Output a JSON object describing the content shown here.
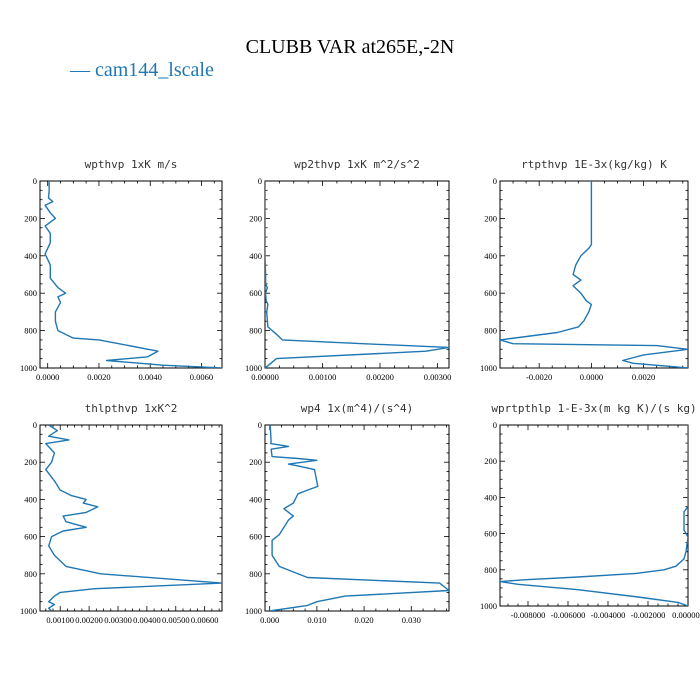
{
  "title": "CLUBB VAR at265E,-2N",
  "legend": {
    "label": "cam144_lscale",
    "color": "#1f77b4"
  },
  "chart_data": [
    {
      "type": "line",
      "title": "wpthvp   1xK m/s",
      "xlim": [
        -0.0003,
        0.0068
      ],
      "ylim": [
        1000,
        0
      ],
      "xticks": [
        0.0,
        0.002,
        0.004,
        0.006
      ],
      "xticklabels": [
        "0.0000",
        "0.0020",
        "0.0040",
        "0.0060"
      ],
      "yticks": [
        0,
        200,
        400,
        600,
        800,
        1000
      ],
      "series": [
        {
          "x": [
            5e-05,
            6e-05,
            3e-05,
            0.0002,
            -0.0001,
            0.0001,
            0.0003,
            -0.0001,
            0.0001,
            0.0001,
            -0.0001,
            0.0001,
            0.0001,
            0.0004,
            0.0007,
            0.0004,
            0.0005,
            0.0003,
            0.0003,
            0.0004,
            0.001,
            0.002,
            0.0043,
            0.0039,
            0.0023,
            0.0045,
            0.0068
          ],
          "y": [
            0,
            50,
            90,
            110,
            130,
            170,
            200,
            240,
            280,
            330,
            390,
            450,
            520,
            570,
            600,
            620,
            650,
            700,
            750,
            800,
            840,
            850,
            910,
            940,
            960,
            985,
            1000
          ]
        }
      ]
    },
    {
      "type": "line",
      "title": "wp2thvp   1xK m^2/s^2",
      "xlim": [
        0.0,
        0.0032
      ],
      "ylim": [
        1000,
        0
      ],
      "xticks": [
        0.0,
        0.001,
        0.002,
        0.003
      ],
      "xticklabels": [
        "0.00000",
        "0.00100",
        "0.00200",
        "0.00300"
      ],
      "yticks": [
        0,
        200,
        400,
        600,
        800,
        1000
      ],
      "series": [
        {
          "x": [
            0.0,
            0.0,
            0.0,
            1e-05,
            1e-05,
            4e-05,
            1e-05,
            2e-05,
            5e-05,
            3e-05,
            5e-05,
            0.0002,
            0.0003,
            0.0017,
            0.0032,
            0.0028,
            0.0002,
            8e-05,
            0.0
          ],
          "y": [
            0,
            200,
            400,
            500,
            550,
            570,
            600,
            640,
            660,
            700,
            780,
            820,
            850,
            870,
            890,
            910,
            950,
            980,
            1000
          ]
        }
      ]
    },
    {
      "type": "line",
      "title": "rtpthvp   1E-3x(kg/kg) K",
      "xlim": [
        -0.0035,
        0.0037
      ],
      "ylim": [
        1000,
        0
      ],
      "xticks": [
        -0.002,
        0.0,
        0.002
      ],
      "xticklabels": [
        "-0.0020",
        "0.0000",
        "0.0020"
      ],
      "yticks": [
        0,
        200,
        400,
        600,
        800,
        1000
      ],
      "series": [
        {
          "x": [
            0.0,
            0.0,
            0.0,
            0.0,
            -0.0001,
            -0.0004,
            -0.0006,
            -0.0007,
            -0.0004,
            -0.0007,
            -0.0004,
            -0.0002,
            0.0,
            -0.0001,
            -0.0003,
            -0.0005,
            -0.0013,
            -0.0035,
            -0.003,
            0.0025,
            0.0037,
            0.002,
            0.0012,
            0.0016,
            0.0037
          ],
          "y": [
            0,
            200,
            300,
            340,
            360,
            400,
            450,
            500,
            530,
            560,
            600,
            640,
            660,
            700,
            750,
            780,
            810,
            850,
            870,
            880,
            900,
            930,
            960,
            975,
            1000
          ]
        }
      ]
    },
    {
      "type": "line",
      "title": "thlpthvp   1xK^2",
      "xlim": [
        0.0003,
        0.0066
      ],
      "ylim": [
        1000,
        0
      ],
      "xticks": [
        0.001,
        0.002,
        0.003,
        0.004,
        0.005,
        0.006
      ],
      "xticklabels": [
        "0.00100",
        "0.00200",
        "0.00300",
        "0.00400",
        "0.00500",
        "0.00600"
      ],
      "yticks": [
        0,
        200,
        400,
        600,
        800,
        1000
      ],
      "series": [
        {
          "x": [
            0.0006,
            0.0009,
            0.0006,
            0.0013,
            0.0005,
            0.0008,
            0.0007,
            0.0005,
            0.0008,
            0.001,
            0.0014,
            0.0019,
            0.0018,
            0.0023,
            0.0019,
            0.0011,
            0.0012,
            0.0019,
            0.0011,
            0.0007,
            0.0006,
            0.0008,
            0.0012,
            0.0024,
            0.0066,
            0.0022,
            0.001,
            0.0008,
            0.0006,
            0.0008,
            0.0006,
            0.0007
          ],
          "y": [
            0,
            30,
            60,
            80,
            100,
            150,
            200,
            240,
            300,
            350,
            380,
            400,
            420,
            440,
            470,
            490,
            520,
            550,
            570,
            600,
            650,
            700,
            760,
            800,
            850,
            880,
            900,
            920,
            950,
            965,
            985,
            1000
          ]
        }
      ]
    },
    {
      "type": "line",
      "title": "wp4   1x(m^4)/(s^4)",
      "xlim": [
        -0.001,
        0.038
      ],
      "ylim": [
        1000,
        0
      ],
      "xticks": [
        0.0,
        0.01,
        0.02,
        0.03
      ],
      "xticklabels": [
        "0.000",
        "0.010",
        "0.020",
        "0.030"
      ],
      "yticks": [
        0,
        200,
        400,
        600,
        800,
        1000
      ],
      "series": [
        {
          "x": [
            0.0001,
            0.0002,
            0.0003,
            0.0002,
            0.004,
            0.0003,
            0.0005,
            0.006,
            0.01,
            0.004,
            0.006,
            0.0095,
            0.0102,
            0.008,
            0.006,
            0.005,
            0.003,
            0.005,
            0.004,
            0.002,
            0.0005,
            0.0005,
            0.002,
            0.008,
            0.036,
            0.038,
            0.016,
            0.01,
            0.008,
            0.0
          ],
          "y": [
            0,
            50,
            90,
            100,
            115,
            130,
            170,
            180,
            190,
            210,
            220,
            240,
            330,
            350,
            370,
            420,
            450,
            490,
            510,
            590,
            620,
            700,
            760,
            820,
            850,
            890,
            920,
            950,
            970,
            1000
          ]
        }
      ]
    },
    {
      "type": "line",
      "title": "wprtpthlp   1-E-3x(m kg K)/(s kg)",
      "xlim": [
        -0.0094,
        0.0
      ],
      "ylim": [
        1000,
        0
      ],
      "xticks": [
        -0.008,
        -0.006,
        -0.004,
        -0.002,
        0.0
      ],
      "xticklabels": [
        "-0.008000",
        "-0.006000",
        "-0.004000",
        "-0.002000",
        "0.000000"
      ],
      "yticks": [
        0,
        200,
        400,
        600,
        800,
        1000
      ],
      "series": [
        {
          "x": [
            0.0,
            0.0,
            0.0,
            -0.0002,
            -0.0002,
            0.0,
            -0.0001,
            -0.0002,
            -0.0006,
            -0.0012,
            -0.0026,
            -0.0055,
            -0.0082,
            -0.0094,
            -0.0085,
            -0.0055,
            -0.0025,
            -0.0005,
            0.0
          ],
          "y": [
            0,
            200,
            450,
            480,
            580,
            620,
            700,
            740,
            780,
            800,
            820,
            840,
            855,
            865,
            880,
            910,
            950,
            980,
            1000
          ]
        }
      ]
    }
  ]
}
